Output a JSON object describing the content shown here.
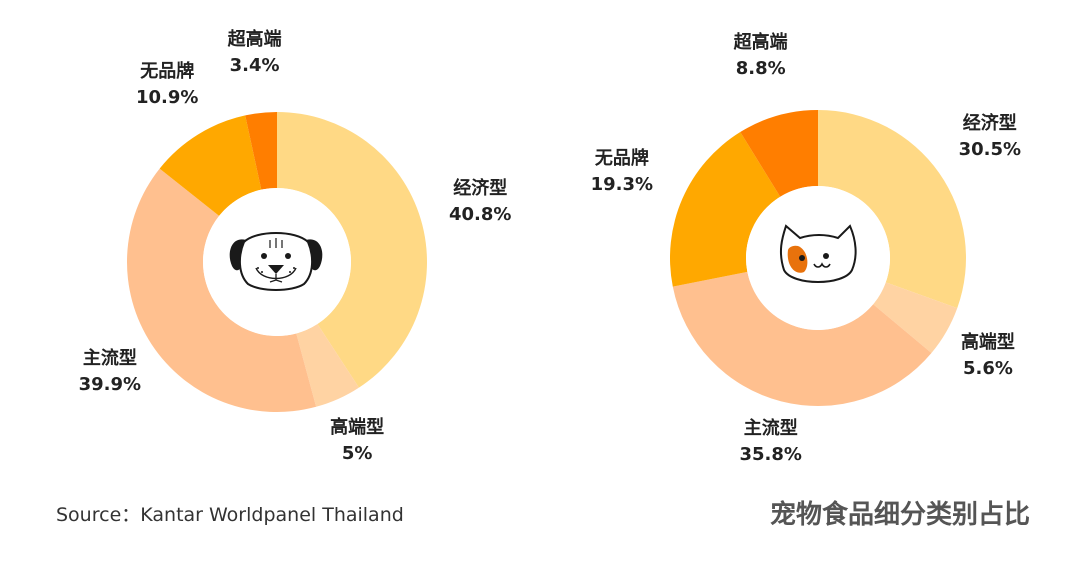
{
  "colors": {
    "经济型": "#FFD985",
    "高端型": "#FFD3A3",
    "主流型": "#FFC08F",
    "无品牌": "#FFA800",
    "超高端": "#FF7E00"
  },
  "chart_data": [
    {
      "type": "pie",
      "variant": "donut",
      "center_icon": "dog-face-icon",
      "slices": [
        {
          "label": "经济型",
          "value": 40.8,
          "display": "40.8%"
        },
        {
          "label": "高端型",
          "value": 5,
          "display": "5%"
        },
        {
          "label": "主流型",
          "value": 39.9,
          "display": "39.9%"
        },
        {
          "label": "无品牌",
          "value": 10.9,
          "display": "10.9%"
        },
        {
          "label": "超高端",
          "value": 3.4,
          "display": "3.4%"
        }
      ]
    },
    {
      "type": "pie",
      "variant": "donut",
      "center_icon": "cat-face-icon",
      "slices": [
        {
          "label": "经济型",
          "value": 30.5,
          "display": "30.5%"
        },
        {
          "label": "高端型",
          "value": 5.6,
          "display": "5.6%"
        },
        {
          "label": "主流型",
          "value": 35.8,
          "display": "35.8%"
        },
        {
          "label": "无品牌",
          "value": 19.3,
          "display": "19.3%"
        },
        {
          "label": "超高端",
          "value": 8.8,
          "display": "8.8%"
        }
      ]
    }
  ],
  "footer": {
    "source": "Source：Kantar Worldpanel Thailand",
    "title": "宠物食品细分类别占比"
  }
}
